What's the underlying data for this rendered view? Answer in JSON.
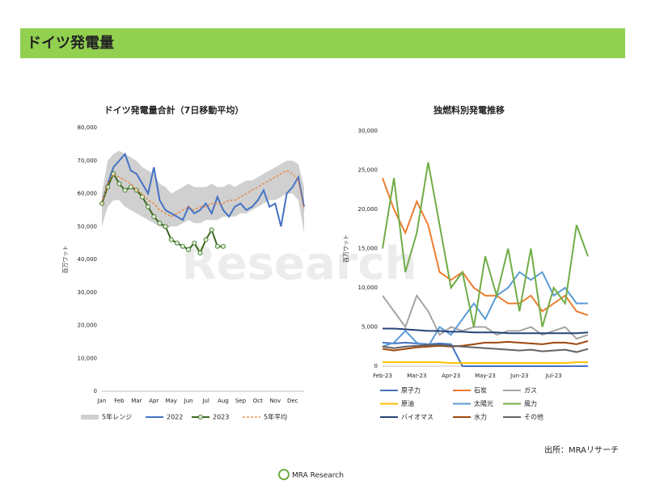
{
  "header": {
    "title": "ドイツ発電量"
  },
  "source": "出所：MRAリサーチ",
  "logo": "MRA Research",
  "watermark": "Research",
  "chart_data": [
    {
      "type": "line",
      "title": "ドイツ発電量合計（7日移動平均）",
      "y_label": "百万ワット",
      "categories": [
        "Jan",
        null,
        null,
        "Feb",
        null,
        null,
        "Mar",
        null,
        null,
        "Apr",
        null,
        null,
        "May",
        null,
        null,
        "Jun",
        null,
        null,
        "Jul",
        null,
        null,
        "Aug",
        null,
        null,
        "Sep",
        null,
        null,
        "Oct",
        null,
        null,
        "Nov",
        null,
        null,
        "Dec",
        null,
        null
      ],
      "ylim": [
        0,
        80000
      ],
      "yticks": [
        0,
        {
          "value": 10000,
          "label": "10,000"
        },
        {
          "value": 20000,
          "label": "20,000"
        },
        {
          "value": 30000,
          "label": "30,000"
        },
        {
          "value": 40000,
          "label": "40,000"
        },
        {
          "value": 50000,
          "label": "50,000"
        },
        {
          "value": 60000,
          "label": "60,000"
        },
        {
          "value": 70000,
          "label": "70,000"
        },
        {
          "value": 80000,
          "label": "80,000"
        }
      ],
      "grid": false,
      "series": [
        {
          "name": "5年レンジ",
          "color": "#d0d0d0",
          "values": [
            60000,
            70000,
            72000,
            73000,
            72000,
            71000,
            70000,
            68000,
            67000,
            66000,
            63000,
            62000,
            60000,
            61000,
            62000,
            63000,
            62000,
            62000,
            62000,
            63000,
            62000,
            62000,
            63000,
            62000,
            63000,
            64000,
            64000,
            65000,
            66000,
            67000,
            68000,
            69000,
            70000,
            70000,
            69000,
            62000
          ],
          "low": [
            50000,
            56000,
            58000,
            58000,
            56000,
            55000,
            54000,
            53000,
            52000,
            51000,
            50000,
            49000,
            50000,
            50000,
            51000,
            52000,
            51000,
            51000,
            52000,
            52000,
            52000,
            53000,
            53000,
            53000,
            54000,
            54000,
            55000,
            56000,
            57000,
            58000,
            58000,
            59000,
            60000,
            60000,
            58000,
            48000
          ]
        },
        {
          "name": "2022",
          "color": "#4472c4",
          "values": [
            57000,
            63000,
            68000,
            70000,
            72000,
            67000,
            66000,
            63000,
            60000,
            68000,
            58000,
            55000,
            54000,
            53000,
            52000,
            56000,
            54000,
            55000,
            57000,
            54000,
            59000,
            55000,
            53000,
            56000,
            57000,
            55000,
            56000,
            58000,
            61000,
            56000,
            57000,
            50000,
            60000,
            62000,
            65000,
            56000
          ]
        },
        {
          "name": "2023",
          "color": "#3a6b1e",
          "marker_fill": "#d9ead3",
          "markers": true,
          "values": [
            57000,
            62000,
            66000,
            63000,
            61000,
            62000,
            61000,
            59000,
            56000,
            53000,
            51000,
            50000,
            46000,
            45000,
            44000,
            43000,
            45000,
            42000,
            46000,
            49000,
            44000,
            44000,
            null,
            null,
            null,
            null,
            null,
            null,
            null,
            null,
            null,
            null,
            null,
            null,
            null,
            null
          ]
        },
        {
          "name": "5年平均",
          "color": "#ed7d31",
          "dashed": true,
          "values": [
            57000,
            63000,
            66000,
            65000,
            64000,
            63000,
            61000,
            60000,
            58000,
            57000,
            55000,
            54000,
            53000,
            54000,
            55000,
            56000,
            55000,
            56000,
            56000,
            57000,
            57000,
            57000,
            58000,
            58000,
            59000,
            60000,
            61000,
            62000,
            63000,
            64000,
            65000,
            66000,
            67000,
            66000,
            64000,
            55000
          ]
        }
      ]
    },
    {
      "type": "line",
      "title": "独燃料別発電推移",
      "y_label": "百万ワット",
      "categories": [
        "Feb-23",
        null,
        null,
        "Mar-23",
        null,
        null,
        "Apr-23",
        null,
        null,
        "May-23",
        null,
        null,
        "Jun-23",
        null,
        null,
        "Jul-23",
        null,
        null,
        null
      ],
      "ylim": [
        0,
        30000
      ],
      "yticks": [
        0,
        {
          "value": 5000,
          "label": "5,000"
        },
        {
          "value": 10000,
          "label": "10,000"
        },
        {
          "value": 15000,
          "label": "15,000"
        },
        {
          "value": 20000,
          "label": "20,000"
        },
        {
          "value": 25000,
          "label": "25,000"
        },
        {
          "value": 30000,
          "label": "30,000"
        }
      ],
      "grid": false,
      "series": [
        {
          "name": "原子力",
          "color": "#4472c4",
          "values": [
            3000,
            2900,
            3000,
            2900,
            2800,
            2900,
            2800,
            0,
            0,
            0,
            0,
            0,
            0,
            0,
            0,
            0,
            0,
            0,
            0
          ]
        },
        {
          "name": "石炭",
          "color": "#ed7d31",
          "values": [
            24000,
            20000,
            17000,
            21000,
            18000,
            12000,
            11000,
            12000,
            10000,
            9000,
            9000,
            8000,
            8000,
            9000,
            7000,
            8000,
            9000,
            7000,
            6500
          ]
        },
        {
          "name": "ガス",
          "color": "#a5a5a5",
          "values": [
            9000,
            7000,
            5000,
            9000,
            7000,
            4000,
            5000,
            4500,
            5000,
            5000,
            4000,
            4500,
            4500,
            5000,
            4000,
            4500,
            5000,
            3500,
            4000
          ]
        },
        {
          "name": "原油",
          "color": "#ffc000",
          "values": [
            500,
            500,
            500,
            500,
            500,
            500,
            400,
            400,
            400,
            400,
            400,
            400,
            400,
            400,
            400,
            400,
            400,
            500,
            500
          ]
        },
        {
          "name": "太陽光",
          "color": "#5b9bd5",
          "values": [
            2500,
            3000,
            4500,
            3000,
            2500,
            5000,
            4000,
            6000,
            8000,
            6000,
            9000,
            10000,
            12000,
            11000,
            12000,
            9000,
            10000,
            8000,
            8000
          ]
        },
        {
          "name": "風力",
          "color": "#70ad47",
          "values": [
            15000,
            24000,
            12000,
            17000,
            26000,
            18000,
            10000,
            12000,
            5000,
            14000,
            9000,
            15000,
            7000,
            15000,
            5000,
            10000,
            8000,
            18000,
            14000
          ]
        },
        {
          "name": "バイオマス",
          "color": "#264478",
          "values": [
            4800,
            4800,
            4700,
            4600,
            4500,
            4500,
            4400,
            4400,
            4300,
            4300,
            4300,
            4200,
            4200,
            4200,
            4200,
            4200,
            4200,
            4200,
            4300
          ]
        },
        {
          "name": "水力",
          "color": "#9e480e",
          "values": [
            2200,
            2000,
            2200,
            2400,
            2500,
            2600,
            2500,
            2600,
            2800,
            3000,
            3000,
            3100,
            3000,
            2900,
            2800,
            3000,
            3000,
            2800,
            3200
          ]
        },
        {
          "name": "その他",
          "color": "#636363",
          "values": [
            2500,
            2300,
            2500,
            2600,
            2700,
            2700,
            2600,
            2500,
            2400,
            2300,
            2200,
            2100,
            2000,
            2100,
            1900,
            2000,
            2100,
            1800,
            2200
          ]
        }
      ]
    }
  ]
}
